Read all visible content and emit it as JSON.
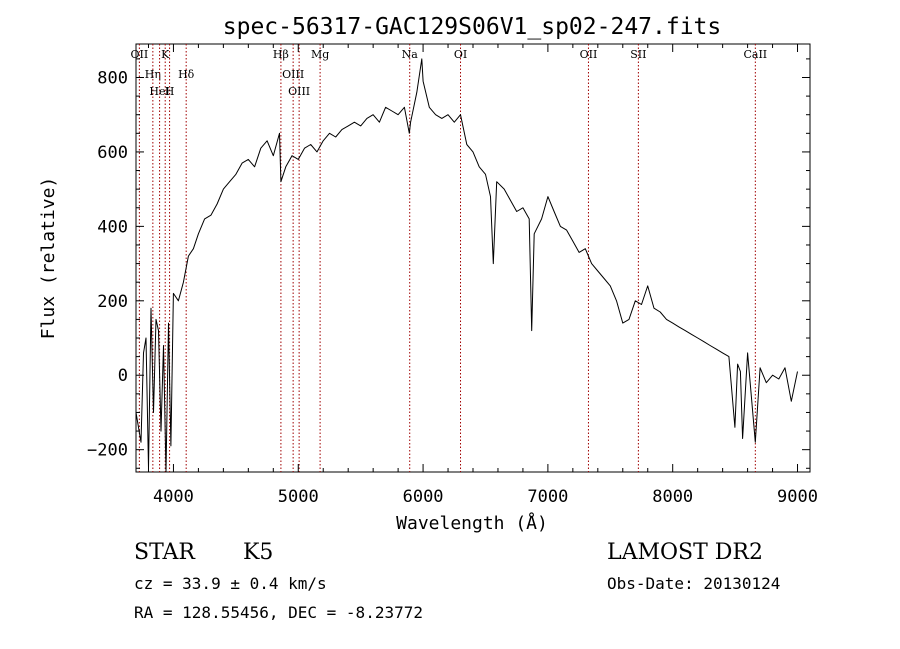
{
  "chart_data": {
    "type": "line",
    "title": "spec-56317-GAC129S06V1_sp02-247.fits",
    "xlabel": "Wavelength (Å)",
    "ylabel": "Flux (relative)",
    "xlim": [
      3700,
      9100
    ],
    "ylim": [
      -260,
      890
    ],
    "xticks": [
      4000,
      5000,
      6000,
      7000,
      8000,
      9000
    ],
    "yticks": [
      -200,
      0,
      200,
      400,
      600,
      800
    ],
    "grid": false,
    "series": [
      {
        "color": "#000000",
        "x": [
          3700,
          3740,
          3760,
          3780,
          3800,
          3820,
          3840,
          3860,
          3880,
          3900,
          3920,
          3940,
          3960,
          3980,
          4000,
          4040,
          4080,
          4120,
          4160,
          4200,
          4250,
          4300,
          4350,
          4400,
          4450,
          4500,
          4550,
          4600,
          4650,
          4700,
          4750,
          4800,
          4850,
          4861,
          4900,
          4950,
          5000,
          5050,
          5100,
          5150,
          5200,
          5250,
          5300,
          5350,
          5400,
          5450,
          5500,
          5550,
          5600,
          5650,
          5700,
          5750,
          5800,
          5850,
          5890,
          5900,
          5950,
          5990,
          6000,
          6050,
          6100,
          6150,
          6200,
          6250,
          6300,
          6350,
          6400,
          6450,
          6500,
          6540,
          6563,
          6590,
          6650,
          6700,
          6750,
          6800,
          6850,
          6870,
          6890,
          6950,
          7000,
          7050,
          7100,
          7150,
          7200,
          7250,
          7300,
          7350,
          7400,
          7450,
          7500,
          7550,
          7600,
          7650,
          7700,
          7750,
          7800,
          7850,
          7900,
          7950,
          8000,
          8050,
          8100,
          8150,
          8200,
          8250,
          8300,
          8350,
          8400,
          8450,
          8498,
          8520,
          8542,
          8560,
          8600,
          8662,
          8700,
          8750,
          8800,
          8850,
          8900,
          8950,
          9000
        ],
        "y": [
          -100,
          -180,
          60,
          100,
          -250,
          180,
          -100,
          150,
          120,
          -150,
          80,
          -260,
          140,
          -190,
          220,
          200,
          250,
          320,
          340,
          380,
          420,
          430,
          460,
          500,
          520,
          540,
          570,
          580,
          560,
          610,
          630,
          590,
          650,
          520,
          560,
          590,
          580,
          610,
          620,
          600,
          630,
          650,
          640,
          660,
          670,
          680,
          670,
          690,
          700,
          680,
          720,
          710,
          700,
          720,
          650,
          680,
          760,
          850,
          790,
          720,
          700,
          690,
          700,
          680,
          700,
          620,
          600,
          560,
          540,
          480,
          300,
          520,
          500,
          470,
          440,
          450,
          420,
          120,
          380,
          420,
          480,
          440,
          400,
          390,
          360,
          330,
          340,
          300,
          280,
          260,
          240,
          200,
          140,
          150,
          200,
          190,
          240,
          180,
          170,
          150,
          140,
          130,
          120,
          110,
          100,
          90,
          80,
          70,
          60,
          50,
          -140,
          30,
          10,
          -170,
          60,
          -180,
          20,
          -20,
          0,
          -10,
          20,
          -70,
          10
        ]
      }
    ],
    "annotations": [
      {
        "label": "OII",
        "x": 3727
      },
      {
        "label": "Hη",
        "x": 3835
      },
      {
        "label": "HeI",
        "x": 3889
      },
      {
        "label": "K",
        "x": 3934
      },
      {
        "label": "H",
        "x": 3969
      },
      {
        "label": "Hδ",
        "x": 4102
      },
      {
        "label": "Hβ",
        "x": 4861
      },
      {
        "label": "OIII",
        "x": 4959
      },
      {
        "label": "OIII",
        "x": 5007
      },
      {
        "label": "Mg",
        "x": 5175
      },
      {
        "label": "Na",
        "x": 5893
      },
      {
        "label": "OI",
        "x": 6300
      },
      {
        "label": "OII",
        "x": 7325
      },
      {
        "label": "SII",
        "x": 7725
      },
      {
        "label": "CaII",
        "x": 8662
      }
    ]
  },
  "info": {
    "class": "STAR",
    "subclass": "K5",
    "survey": "LAMOST DR2",
    "cz": "cz = 33.9 ± 0.4 km/s",
    "obs_date": "Obs-Date: 20130124",
    "radec": "RA = 128.55456, DEC =  -8.23772"
  }
}
